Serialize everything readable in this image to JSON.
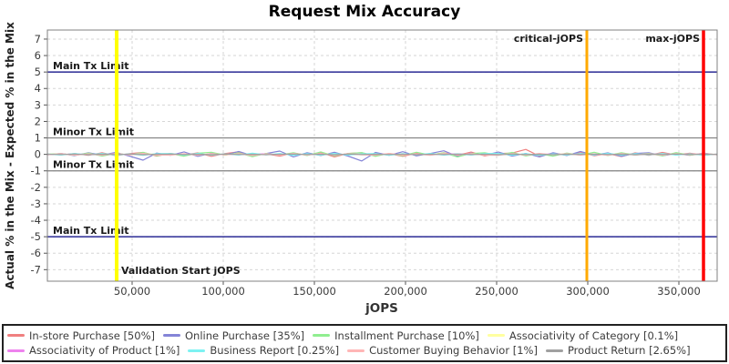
{
  "chart_data": {
    "type": "line",
    "title": "Request Mix Accuracy",
    "xlabel": "jOPS",
    "ylabel": "Actual % in the Mix - Expected % in the Mix",
    "xlim": [
      3500,
      371000
    ],
    "ylim": [
      -7.7,
      7.55
    ],
    "x_ticks": [
      50000,
      100000,
      150000,
      200000,
      250000,
      300000,
      350000
    ],
    "y_ticks": [
      -7,
      -6,
      -5,
      -4,
      -3,
      -2,
      -1,
      0,
      1,
      2,
      3,
      4,
      5,
      6,
      7
    ],
    "grid": "dashed",
    "legend_position": "bottom",
    "x_start": 3500,
    "x_step": 7500,
    "colors": {
      "background": "#ffffff",
      "grid": "#d6d6d6",
      "border": "#808080",
      "tick": "#555555",
      "main_tx_limit": "#000080",
      "minor_tx_limit": "#808080",
      "validation_line": "#ffff00",
      "critical_line": "#ffaa00",
      "max_line": "#ff0000"
    },
    "limit_lines": [
      {
        "label": "Main Tx Limit",
        "y": 5,
        "color": "#000080"
      },
      {
        "label": "Minor Tx Limit",
        "y": 1,
        "color": "#808080"
      },
      {
        "label": "Minor Tx Limit",
        "y": -1,
        "color": "#808080"
      },
      {
        "label": "Main Tx Limit",
        "y": -5,
        "color": "#000080"
      }
    ],
    "marker_lines": [
      {
        "label": "Validation Start jOPS",
        "x": 41500,
        "color": "#ffff00",
        "width": 4,
        "label_side": "bottom-right"
      },
      {
        "label": "critical-jOPS",
        "x": 299500,
        "color": "#ffaa00",
        "width": 3,
        "label_side": "top-left"
      },
      {
        "label": "max-jOPS",
        "x": 363500,
        "color": "#ff0000",
        "width": 3.5,
        "label_side": "top-left"
      }
    ],
    "series": [
      {
        "name": "In-store Purchase [50%]",
        "color": "#f08080",
        "values": [
          0.02,
          -0.03,
          0.05,
          -0.06,
          0.1,
          -0.08,
          0.04,
          0.12,
          -0.1,
          0.06,
          -0.04,
          0.09,
          -0.12,
          0.05,
          0.15,
          -0.07,
          0.03,
          -0.1,
          0.08,
          -0.05,
          0.12,
          -0.15,
          0.06,
          0.1,
          -0.08,
          0.04,
          -0.12,
          0.07,
          -0.04,
          0.1,
          -0.06,
          0.14,
          -0.09,
          0.05,
          0.08,
          0.3,
          -0.1,
          0.07,
          -0.05,
          0.11,
          -0.08,
          0.04,
          -0.13,
          0.09,
          -0.06,
          0.12,
          -0.04,
          0.07,
          -0.05,
          0.02
        ]
      },
      {
        "name": "Online Purchase [35%]",
        "color": "#8484d7",
        "values": [
          -0.03,
          0.06,
          -0.08,
          0.1,
          -0.05,
          0.12,
          -0.1,
          -0.35,
          0.08,
          -0.06,
          0.15,
          -0.12,
          0.07,
          -0.04,
          0.18,
          -0.08,
          0.05,
          0.2,
          -0.15,
          0.1,
          -0.07,
          0.13,
          -0.1,
          -0.4,
          0.12,
          -0.06,
          0.16,
          -0.09,
          0.05,
          0.22,
          -0.12,
          0.08,
          -0.05,
          0.14,
          -0.1,
          0.06,
          -0.15,
          0.1,
          -0.07,
          0.18,
          -0.05,
          0.09,
          -0.12,
          0.06,
          0.1,
          -0.08,
          0.04,
          -0.06,
          0.08,
          -0.03
        ]
      },
      {
        "name": "Installment Purchase [10%]",
        "color": "#90ee90",
        "values": [
          0.01,
          0.04,
          -0.06,
          0.08,
          -0.1,
          0.05,
          -0.03,
          0.12,
          -0.08,
          0.04,
          -0.11,
          0.07,
          0.13,
          -0.05,
          0.09,
          -0.14,
          0.06,
          -0.04,
          0.1,
          -0.07,
          0.15,
          -0.09,
          0.05,
          0.11,
          -0.12,
          0.06,
          -0.08,
          0.13,
          -0.04,
          0.09,
          -0.15,
          0.05,
          0.1,
          -0.06,
          0.12,
          -0.09,
          0.04,
          -0.11,
          0.08,
          -0.05,
          0.13,
          -0.07,
          0.1,
          -0.04,
          0.06,
          -0.09,
          0.11,
          -0.05,
          0.03,
          -0.02
        ]
      },
      {
        "name": "Associativity of Category [0.1%]",
        "color": "#ffffa0",
        "values": [
          0,
          0.01,
          -0.02,
          0.02,
          -0.01,
          0.03,
          -0.02,
          0.01,
          0.02,
          -0.03,
          0.01,
          -0.01,
          0.02,
          -0.02,
          0.03,
          -0.01,
          0.01,
          -0.02,
          0.02,
          -0.01,
          0.01,
          0.02,
          -0.02,
          0.01,
          -0.03,
          0.02,
          -0.01,
          0.01,
          -0.02,
          0.03,
          -0.01,
          0.02,
          -0.02,
          0.01,
          -0.01,
          0.02,
          -0.03,
          0.01,
          0.02,
          -0.01,
          0.01,
          -0.02,
          0.02,
          -0.01,
          0.03,
          -0.02,
          0.01,
          -0.01,
          0.02,
          0
        ]
      },
      {
        "name": "Associativity of Product [1%]",
        "color": "#ee82ee",
        "values": [
          0.01,
          -0.02,
          0.03,
          -0.01,
          0.02,
          -0.03,
          0.01,
          0.02,
          -0.02,
          0.03,
          -0.01,
          0.02,
          -0.03,
          0.01,
          -0.02,
          0.02,
          0.03,
          -0.01,
          0.02,
          -0.02,
          0.01,
          -0.03,
          0.02,
          0.01,
          -0.02,
          0.03,
          -0.01,
          0.02,
          -0.02,
          0.01,
          0.03,
          -0.02,
          0.01,
          -0.01,
          0.02,
          -0.03,
          0.01,
          0.02,
          -0.01,
          0.03,
          -0.02,
          0.01,
          -0.02,
          0.02,
          -0.01,
          0.03,
          -0.01,
          0.02,
          -0.02,
          0.01
        ]
      },
      {
        "name": "Business Report [0.25%]",
        "color": "#7df2f2",
        "values": [
          0.02,
          -0.04,
          0.05,
          -0.03,
          0.06,
          -0.05,
          0.03,
          -0.06,
          0.04,
          0.05,
          -0.04,
          0.06,
          -0.05,
          0.03,
          -0.04,
          0.07,
          -0.03,
          0.05,
          -0.06,
          0.04,
          -0.05,
          0.06,
          -0.04,
          0.03,
          0.05,
          -0.06,
          0.04,
          -0.03,
          0.06,
          -0.05,
          0.03,
          -0.04,
          0.05,
          0.06,
          -0.05,
          0.04,
          -0.06,
          0.03,
          -0.04,
          0.05,
          -0.03,
          0.06,
          -0.05,
          0.04,
          -0.03,
          0.05,
          -0.04,
          0.03,
          -0.05,
          0.02
        ]
      },
      {
        "name": "Customer Buying Behavior [1%]",
        "color": "#ffb6b6",
        "values": [
          -0.02,
          0.04,
          -0.05,
          0.03,
          -0.06,
          0.05,
          -0.03,
          0.06,
          -0.04,
          -0.05,
          0.04,
          -0.06,
          0.05,
          -0.03,
          0.04,
          -0.07,
          0.03,
          -0.05,
          0.06,
          -0.04,
          0.05,
          -0.06,
          0.04,
          -0.03,
          -0.05,
          0.06,
          -0.04,
          0.03,
          -0.06,
          0.05,
          -0.03,
          0.04,
          -0.05,
          -0.06,
          0.05,
          -0.04,
          0.06,
          -0.03,
          0.04,
          -0.05,
          0.03,
          -0.06,
          0.05,
          -0.04,
          0.03,
          -0.05,
          0.04,
          -0.03,
          0.05,
          -0.02
        ]
      },
      {
        "name": "Product Return [2.65%]",
        "color": "#a0a0a0",
        "values": [
          0.01,
          -0.01,
          0.02,
          -0.02,
          0.01,
          -0.01,
          0.02,
          -0.02,
          0.01,
          0.02,
          -0.01,
          0.01,
          -0.02,
          0.02,
          -0.01,
          0.01,
          -0.02,
          0.01,
          0.02,
          -0.01,
          0.01,
          -0.02,
          0.02,
          -0.01,
          0.01,
          -0.01,
          0.02,
          -0.02,
          0.01,
          -0.01,
          0.02,
          -0.01,
          0.01,
          -0.02,
          0.02,
          -0.01,
          0.01,
          -0.02,
          0.01,
          -0.01,
          0.02,
          -0.01,
          0.01,
          -0.02,
          0.01,
          -0.01,
          0.02,
          -0.01,
          0.01,
          0
        ]
      }
    ]
  }
}
